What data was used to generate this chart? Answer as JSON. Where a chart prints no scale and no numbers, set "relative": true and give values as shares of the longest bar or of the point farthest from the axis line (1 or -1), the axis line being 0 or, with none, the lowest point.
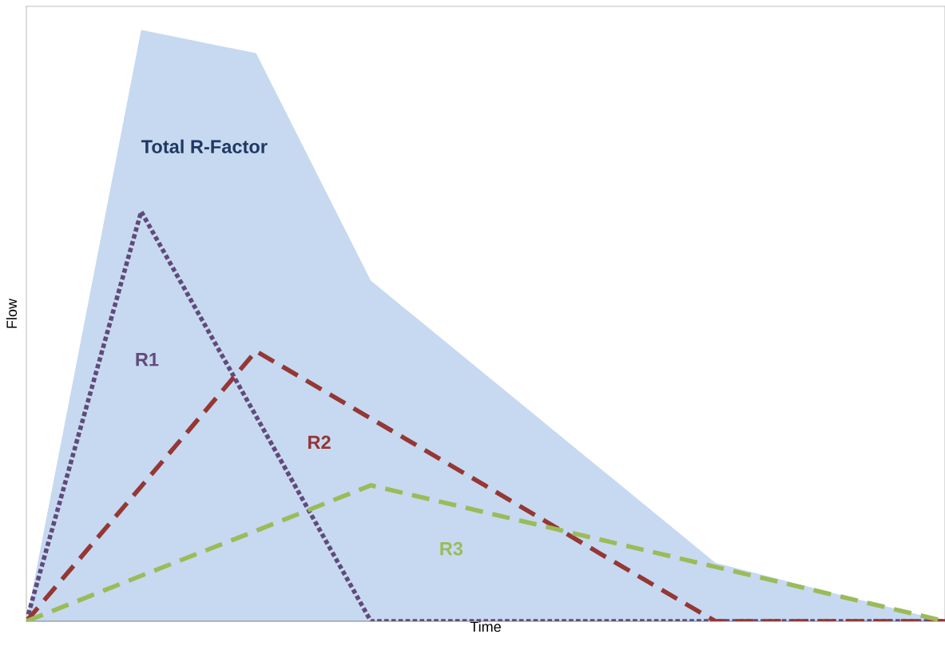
{
  "chart_data": {
    "type": "line",
    "relative": true,
    "xlabel": "Time",
    "ylabel": "Flow",
    "legend": false,
    "categories": [
      null,
      null,
      null,
      null,
      null,
      null,
      null,
      null,
      null
    ],
    "series": [
      {
        "name": "Total R-Factor",
        "type": "area",
        "color": "#c6d9f0",
        "values": [
          0,
          1.0,
          0.961,
          0.576,
          0.417,
          0.258,
          0.099,
          0.049,
          0
        ]
      },
      {
        "name": "R1",
        "color": "#604a7b",
        "line_style": "dotted",
        "values": [
          0,
          0.693,
          0.347,
          0,
          0,
          0,
          0,
          0,
          0
        ]
      },
      {
        "name": "R2",
        "color": "#953735",
        "line_style": "dashed",
        "values": [
          0,
          0.228,
          0.457,
          0.343,
          0.229,
          0.114,
          0,
          0,
          0
        ]
      },
      {
        "name": "R3",
        "color": "#9bbb59",
        "line_style": "dashed",
        "values": [
          0,
          0.077,
          0.153,
          0.23,
          0.184,
          0.138,
          0.092,
          0.046,
          0
        ]
      }
    ]
  }
}
